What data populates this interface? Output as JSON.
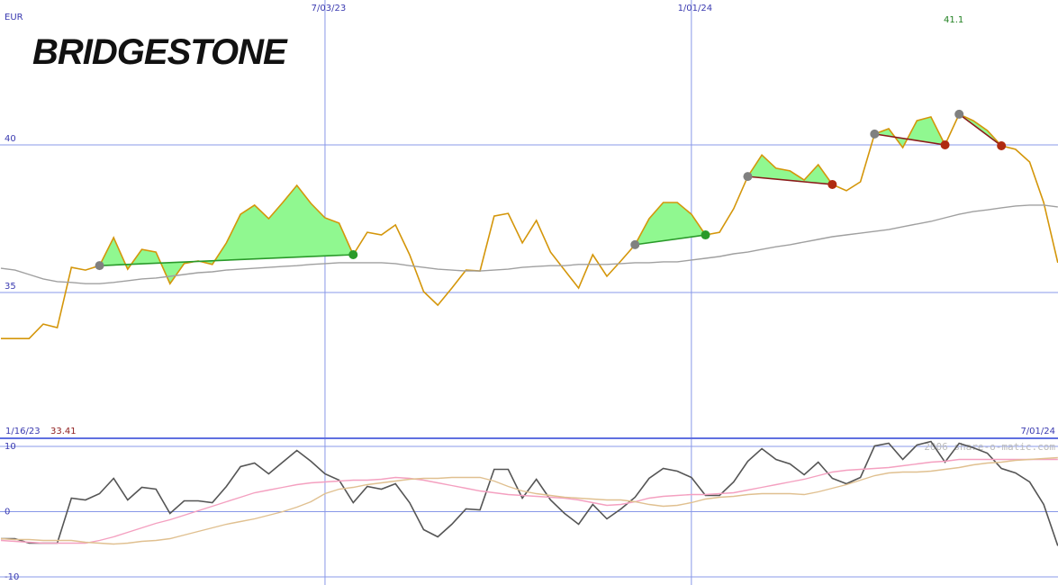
{
  "logo": "BRIDGESTONE",
  "watermark": "2006 share-o-matic.com",
  "chart_data": [
    {
      "type": "line",
      "unit": "EUR",
      "high_label": 41.1,
      "categories": [
        null,
        null,
        null,
        null,
        null,
        null,
        null,
        null,
        null,
        null,
        null,
        null,
        null,
        null,
        null,
        null,
        null,
        null,
        null,
        null,
        null,
        null,
        null,
        "7/03/23",
        null,
        null,
        null,
        null,
        null,
        null,
        null,
        null,
        null,
        null,
        null,
        null,
        null,
        null,
        null,
        null,
        null,
        null,
        null,
        null,
        null,
        null,
        null,
        null,
        null,
        "1/01/24",
        null,
        null,
        null,
        null,
        null,
        null,
        null,
        null,
        null,
        null,
        null,
        null,
        null,
        null,
        null,
        null,
        null,
        null,
        null,
        null,
        null,
        null,
        null,
        null,
        null,
        null
      ],
      "series": [
        {
          "color": "#d4960a",
          "values": [
            33.44,
            33.44,
            33.44,
            33.93,
            33.81,
            35.85,
            35.76,
            35.91,
            36.86,
            35.79,
            36.46,
            36.37,
            35.3,
            35.98,
            36.07,
            35.95,
            36.68,
            37.65,
            37.96,
            37.5,
            38.05,
            38.63,
            38.02,
            37.53,
            37.35,
            36.28,
            37.04,
            36.95,
            37.29,
            36.28,
            35.03,
            34.57,
            35.15,
            35.76,
            35.73,
            37.59,
            37.68,
            36.68,
            37.44,
            36.37,
            35.76,
            35.15,
            36.28,
            35.55,
            36.07,
            36.62,
            37.5,
            38.05,
            38.05,
            37.65,
            36.95,
            37.04,
            37.84,
            38.93,
            39.66,
            39.21,
            39.12,
            38.81,
            39.33,
            38.66,
            38.45,
            38.75,
            40.37,
            40.55,
            39.91,
            40.82,
            40.95,
            40.0,
            41.04,
            40.82,
            40.49,
            39.97,
            39.85,
            39.42,
            38.05,
            36.01
          ]
        },
        {
          "color": "#a0a0a0",
          "values": [
            35.82,
            35.76,
            35.61,
            35.46,
            35.37,
            35.34,
            35.3,
            35.3,
            35.34,
            35.4,
            35.46,
            35.49,
            35.55,
            35.61,
            35.67,
            35.7,
            35.76,
            35.79,
            35.82,
            35.85,
            35.88,
            35.91,
            35.95,
            35.98,
            36.01,
            36.01,
            36.01,
            36.01,
            35.98,
            35.91,
            35.85,
            35.79,
            35.76,
            35.73,
            35.73,
            35.76,
            35.79,
            35.85,
            35.88,
            35.91,
            35.91,
            35.95,
            35.95,
            35.95,
            35.98,
            36.01,
            36.01,
            36.04,
            36.04,
            36.1,
            36.16,
            36.22,
            36.31,
            36.37,
            36.46,
            36.55,
            36.62,
            36.71,
            36.8,
            36.89,
            36.95,
            37.01,
            37.07,
            37.13,
            37.23,
            37.32,
            37.41,
            37.53,
            37.65,
            37.74,
            37.8,
            37.87,
            37.93,
            37.96,
            37.96,
            37.9
          ]
        }
      ],
      "ylim": [
        30.06,
        44.91
      ],
      "yticks": [
        35,
        40
      ],
      "grid": true
    },
    {
      "type": "line",
      "period_start": "1/16/23",
      "start_price": 33.41,
      "period_end": "7/01/24",
      "series": [
        {
          "color": "#555555",
          "values": [
            -4.14,
            -4.14,
            -4.83,
            -4.83,
            -4.83,
            2.07,
            1.79,
            2.76,
            5.1,
            1.79,
            3.72,
            3.45,
            -0.28,
            1.66,
            1.66,
            1.38,
            3.86,
            6.9,
            7.45,
            5.79,
            7.59,
            9.38,
            7.72,
            5.79,
            4.83,
            1.38,
            3.86,
            3.45,
            4.28,
            1.38,
            -2.76,
            -3.86,
            -1.93,
            0.41,
            0.28,
            6.48,
            6.48,
            2.07,
            4.97,
            1.79,
            -0.28,
            -1.93,
            1.1,
            -1.1,
            0.41,
            2.21,
            5.1,
            6.62,
            6.21,
            5.24,
            2.48,
            2.48,
            4.55,
            7.72,
            9.66,
            8.0,
            7.31,
            5.66,
            7.59,
            5.1,
            4.28,
            5.24,
            10.07,
            10.48,
            8.0,
            10.21,
            10.76,
            7.59,
            10.48,
            9.79,
            8.97,
            6.62,
            5.93,
            4.55,
            1.1,
            -5.24
          ]
        },
        {
          "color": "#f4a0c0",
          "values": [
            -4.41,
            -4.55,
            -4.69,
            -4.83,
            -4.83,
            -4.83,
            -4.83,
            -4.41,
            -3.86,
            -3.17,
            -2.48,
            -1.79,
            -1.24,
            -0.55,
            0.14,
            0.83,
            1.52,
            2.21,
            2.9,
            3.31,
            3.72,
            4.14,
            4.41,
            4.55,
            4.69,
            4.83,
            4.83,
            4.97,
            5.24,
            5.1,
            4.83,
            4.41,
            4.0,
            3.59,
            3.17,
            2.9,
            2.62,
            2.48,
            2.34,
            2.21,
            2.07,
            1.79,
            1.38,
            0.97,
            1.1,
            1.52,
            2.07,
            2.34,
            2.48,
            2.62,
            2.62,
            2.76,
            2.9,
            3.31,
            3.72,
            4.14,
            4.55,
            4.97,
            5.52,
            6.07,
            6.34,
            6.48,
            6.62,
            6.76,
            7.03,
            7.31,
            7.59,
            7.72,
            8.0,
            8.0,
            8.0,
            8.0,
            8.0,
            8.0,
            8.0,
            8.0
          ]
        },
        {
          "color": "#e0c090",
          "values": [
            -4.14,
            -4.28,
            -4.28,
            -4.41,
            -4.41,
            -4.41,
            -4.69,
            -4.83,
            -4.97,
            -4.83,
            -4.55,
            -4.41,
            -4.14,
            -3.59,
            -3.03,
            -2.48,
            -1.93,
            -1.52,
            -1.1,
            -0.55,
            0,
            0.69,
            1.52,
            2.76,
            3.45,
            3.72,
            4.14,
            4.41,
            4.69,
            4.97,
            5.1,
            5.1,
            5.24,
            5.24,
            5.24,
            4.69,
            3.86,
            3.17,
            2.76,
            2.48,
            2.21,
            2.07,
            1.93,
            1.79,
            1.79,
            1.52,
            1.1,
            0.83,
            0.97,
            1.38,
            1.93,
            2.21,
            2.34,
            2.62,
            2.76,
            2.76,
            2.76,
            2.62,
            3.03,
            3.59,
            4.14,
            4.83,
            5.52,
            5.93,
            6.07,
            6.07,
            6.21,
            6.48,
            6.76,
            7.17,
            7.45,
            7.59,
            7.86,
            8.0,
            8.14,
            8.28
          ]
        }
      ],
      "ylim": [
        -11.24,
        11.24
      ],
      "yticks": [
        -10,
        0,
        10
      ],
      "grid": true
    }
  ]
}
